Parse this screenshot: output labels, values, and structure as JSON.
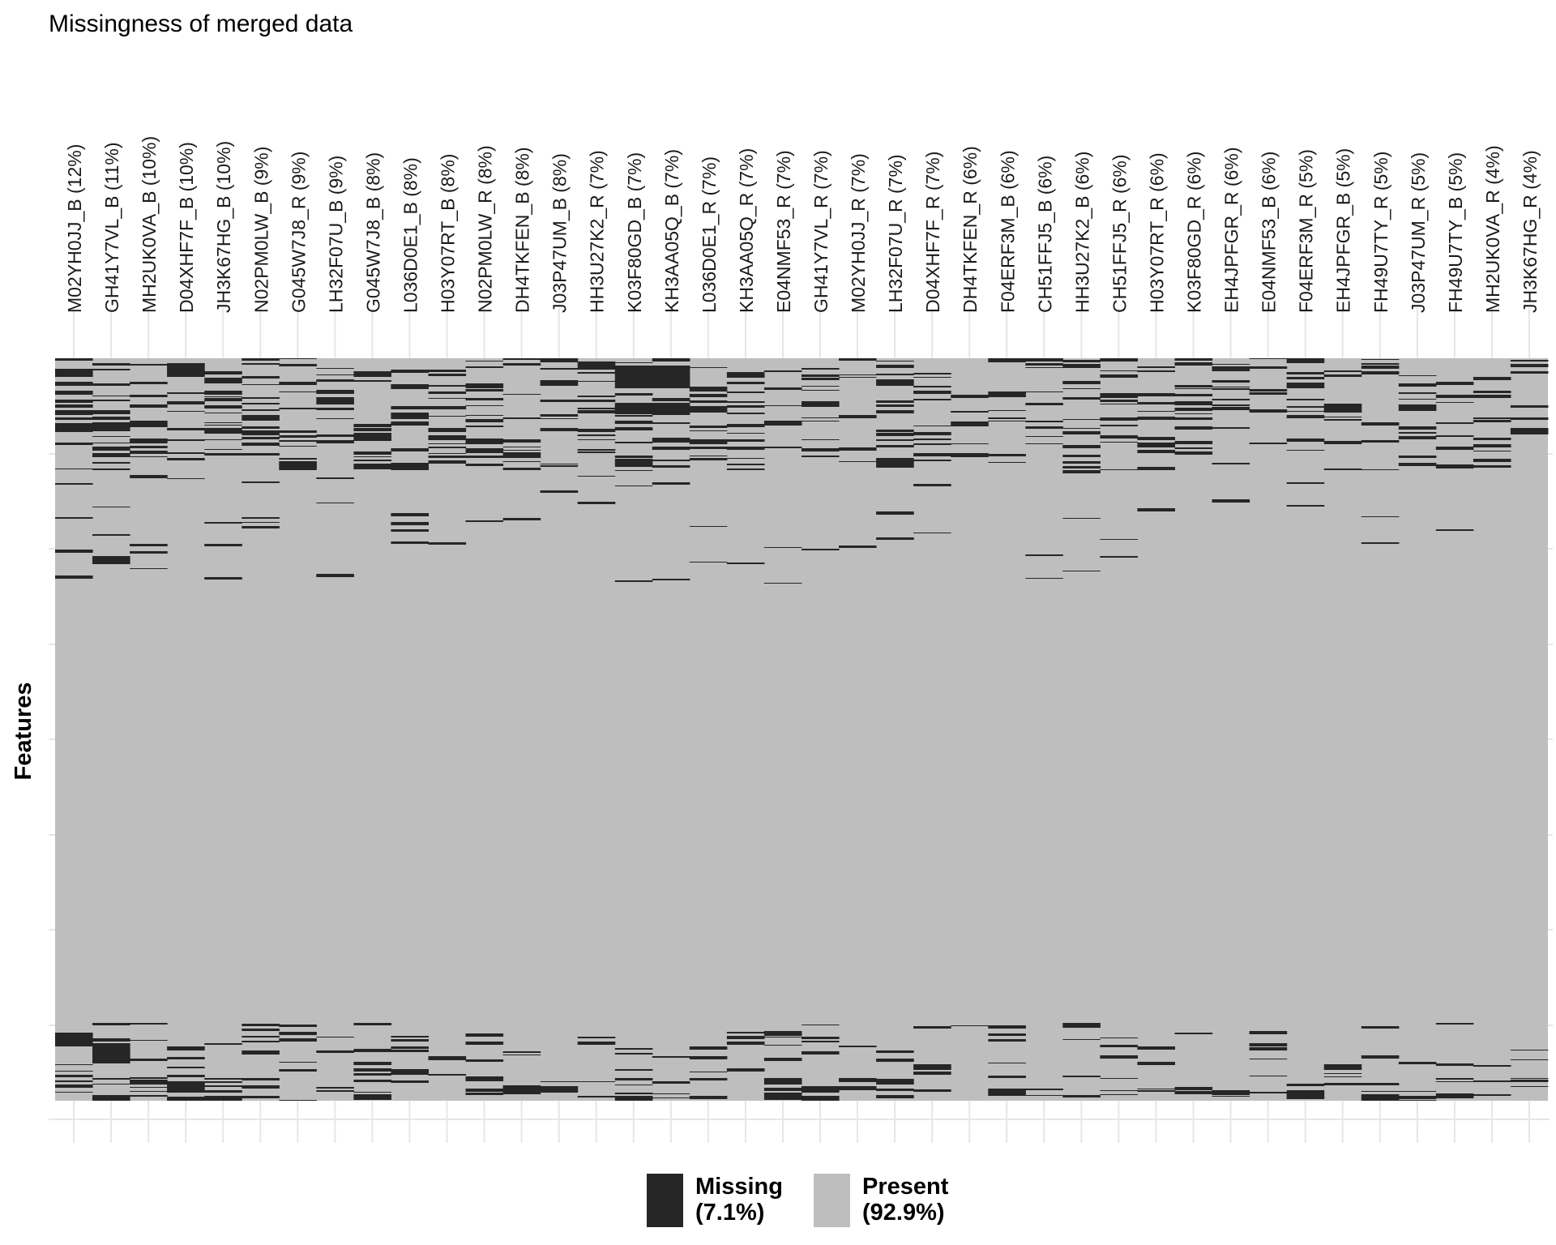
{
  "chart_data": {
    "type": "heatmap",
    "title": "Missingness of merged data",
    "xlabel": "",
    "ylabel": "Features",
    "grid": true,
    "legend_position": "bottom",
    "colors": {
      "missing": "#262626",
      "present": "#bebebe",
      "grid": "#e6e6e6",
      "background": "#ffffff"
    },
    "legend": [
      {
        "label": "Missing",
        "value": "(7.1%)",
        "color": "#262626"
      },
      {
        "label": "Present",
        "value": "(92.9%)",
        "color": "#bebebe"
      }
    ],
    "overall": {
      "missing_pct": 7.1,
      "present_pct": 92.9
    },
    "columns": [
      {
        "label": "M02YH0JJ_B (12%)",
        "missing_pct": 12
      },
      {
        "label": "GH41Y7VL_B (11%)",
        "missing_pct": 11
      },
      {
        "label": "MH2UK0VA_B (10%)",
        "missing_pct": 10
      },
      {
        "label": "D04XHF7F_B (10%)",
        "missing_pct": 10
      },
      {
        "label": "JH3K67HG_B (10%)",
        "missing_pct": 10
      },
      {
        "label": "N02PM0LW_B (9%)",
        "missing_pct": 9
      },
      {
        "label": "G045W7J8_R (9%)",
        "missing_pct": 9
      },
      {
        "label": "LH32F07U_B (9%)",
        "missing_pct": 9
      },
      {
        "label": "G045W7J8_B (8%)",
        "missing_pct": 8
      },
      {
        "label": "L036D0E1_B (8%)",
        "missing_pct": 8
      },
      {
        "label": "H03Y07RT_B (8%)",
        "missing_pct": 8
      },
      {
        "label": "N02PM0LW_R (8%)",
        "missing_pct": 8
      },
      {
        "label": "DH4TKFEN_B (8%)",
        "missing_pct": 8
      },
      {
        "label": "J03P47UM_B (8%)",
        "missing_pct": 8
      },
      {
        "label": "HH3U27K2_R (7%)",
        "missing_pct": 7
      },
      {
        "label": "K03F80GD_B (7%)",
        "missing_pct": 7
      },
      {
        "label": "KH3AA05Q_B (7%)",
        "missing_pct": 7
      },
      {
        "label": "L036D0E1_R (7%)",
        "missing_pct": 7
      },
      {
        "label": "KH3AA05Q_R (7%)",
        "missing_pct": 7
      },
      {
        "label": "E04NMF53_R (7%)",
        "missing_pct": 7
      },
      {
        "label": "GH41Y7VL_R (7%)",
        "missing_pct": 7
      },
      {
        "label": "M02YH0JJ_R (7%)",
        "missing_pct": 7
      },
      {
        "label": "LH32F07U_R (7%)",
        "missing_pct": 7
      },
      {
        "label": "D04XHF7F_R (7%)",
        "missing_pct": 7
      },
      {
        "label": "DH4TKFEN_R (6%)",
        "missing_pct": 6
      },
      {
        "label": "F04ERF3M_B (6%)",
        "missing_pct": 6
      },
      {
        "label": "CH51FFJ5_B (6%)",
        "missing_pct": 6
      },
      {
        "label": "HH3U27K2_B (6%)",
        "missing_pct": 6
      },
      {
        "label": "CH51FFJ5_R (6%)",
        "missing_pct": 6
      },
      {
        "label": "H03Y07RT_R (6%)",
        "missing_pct": 6
      },
      {
        "label": "K03F80GD_R (6%)",
        "missing_pct": 6
      },
      {
        "label": "EH4JPFGR_R (6%)",
        "missing_pct": 6
      },
      {
        "label": "E04NMF53_B (6%)",
        "missing_pct": 6
      },
      {
        "label": "F04ERF3M_R (5%)",
        "missing_pct": 5
      },
      {
        "label": "EH4JPFGR_B (5%)",
        "missing_pct": 5
      },
      {
        "label": "FH49U7TY_R (5%)",
        "missing_pct": 5
      },
      {
        "label": "J03P47UM_R (5%)",
        "missing_pct": 5
      },
      {
        "label": "FH49U7TY_B (5%)",
        "missing_pct": 5
      },
      {
        "label": "MH2UK0VA_R (4%)",
        "missing_pct": 4
      },
      {
        "label": "JH3K67HG_R (4%)",
        "missing_pct": 4
      }
    ]
  }
}
